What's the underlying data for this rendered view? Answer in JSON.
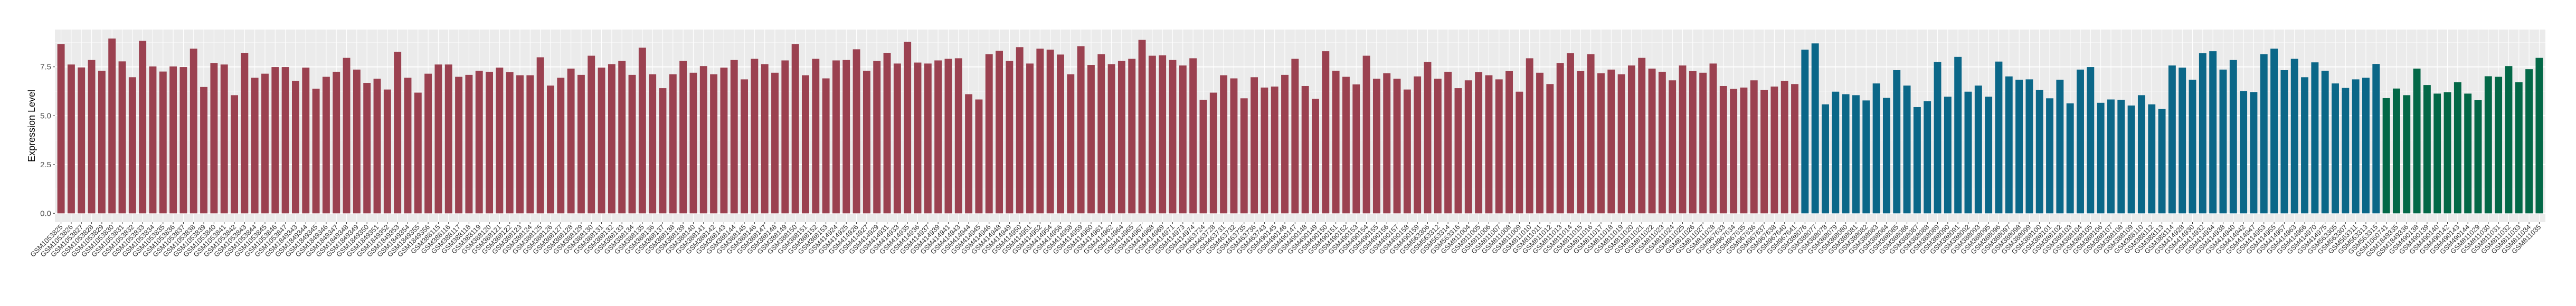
{
  "chart_data": {
    "type": "bar",
    "title": "",
    "xlabel": "",
    "ylabel": "Expression Level",
    "ylim": [
      -0.45,
      9.41
    ],
    "yticks": [
      "0.0",
      "2.5",
      "5.0",
      "7.5"
    ],
    "grid": true,
    "legend": "none",
    "group_colors": [
      "#9B4150",
      "#0B6788",
      "#036847"
    ],
    "categories": [
      "GSM1053825",
      "GSM1053826",
      "GSM1053827",
      "GSM1053828",
      "GSM1053829",
      "GSM1053830",
      "GSM1053831",
      "GSM1053832",
      "GSM1053833",
      "GSM1053834",
      "GSM1053835",
      "GSM1053836",
      "GSM1053837",
      "GSM1053838",
      "GSM1053839",
      "GSM1053840",
      "GSM1053841",
      "GSM1053842",
      "GSM1053843",
      "GSM1053844",
      "GSM1053845",
      "GSM1053846",
      "GSM1053847",
      "GSM1849343",
      "GSM1849344",
      "GSM1849345",
      "GSM1849346",
      "GSM1849347",
      "GSM1849348",
      "GSM1849349",
      "GSM1849350",
      "GSM1849351",
      "GSM1849352",
      "GSM1849353",
      "GSM1849354",
      "GSM1849355",
      "GSM1849356",
      "GSM388115",
      "GSM388116",
      "GSM388117",
      "GSM388118",
      "GSM388119",
      "GSM388120",
      "GSM388121",
      "GSM388122",
      "GSM388123",
      "GSM388124",
      "GSM388125",
      "GSM388126",
      "GSM388127",
      "GSM388128",
      "GSM388129",
      "GSM388130",
      "GSM388131",
      "GSM388132",
      "GSM388133",
      "GSM388134",
      "GSM388135",
      "GSM388136",
      "GSM388137",
      "GSM388138",
      "GSM388139",
      "GSM388140",
      "GSM388141",
      "GSM388142",
      "GSM388143",
      "GSM388144",
      "GSM388145",
      "GSM388146",
      "GSM388147",
      "GSM388148",
      "GSM388149",
      "GSM388150",
      "GSM388151",
      "GSM388152",
      "GSM388153",
      "GSM414924",
      "GSM414925",
      "GSM414926",
      "GSM414927",
      "GSM414929",
      "GSM414931",
      "GSM414933",
      "GSM414935",
      "GSM414936",
      "GSM414937",
      "GSM414939",
      "GSM414941",
      "GSM414943",
      "GSM414944",
      "GSM414945",
      "GSM414946",
      "GSM414948",
      "GSM414949",
      "GSM414950",
      "GSM414951",
      "GSM414952",
      "GSM414954",
      "GSM414956",
      "GSM414958",
      "GSM414959",
      "GSM414960",
      "GSM414961",
      "GSM414962",
      "GSM414964",
      "GSM414965",
      "GSM414967",
      "GSM414968",
      "GSM414969",
      "GSM414971",
      "GSM414973",
      "GSM414974",
      "GSM463724",
      "GSM463728",
      "GSM463731",
      "GSM463732",
      "GSM463735",
      "GSM463736",
      "GSM463743",
      "GSM490145",
      "GSM490146",
      "GSM490147",
      "GSM490148",
      "GSM490149",
      "GSM490150",
      "GSM490151",
      "GSM490152",
      "GSM490153",
      "GSM490154",
      "GSM490155",
      "GSM490156",
      "GSM490157",
      "GSM490158",
      "GSM490159",
      "GSM563306",
      "GSM563312",
      "GSM563314",
      "GSM563316",
      "GSM811004",
      "GSM811005",
      "GSM811006",
      "GSM811007",
      "GSM811008",
      "GSM811009",
      "GSM811010",
      "GSM811011",
      "GSM811012",
      "GSM811013",
      "GSM811014",
      "GSM811015",
      "GSM811016",
      "GSM811017",
      "GSM811018",
      "GSM811019",
      "GSM811020",
      "GSM811021",
      "GSM811022",
      "GSM811023",
      "GSM811024",
      "GSM811025",
      "GSM811026",
      "GSM811027",
      "GSM811028",
      "GSM967633",
      "GSM967634",
      "GSM967635",
      "GSM967636",
      "GSM967637",
      "GSM967638",
      "GSM967640",
      "GSM967641",
      "GSM388076",
      "GSM388077",
      "GSM388078",
      "GSM388079",
      "GSM388080",
      "GSM388081",
      "GSM388082",
      "GSM388083",
      "GSM388084",
      "GSM388085",
      "GSM388086",
      "GSM388087",
      "GSM388088",
      "GSM388089",
      "GSM388090",
      "GSM388091",
      "GSM388092",
      "GSM388093",
      "GSM388095",
      "GSM388096",
      "GSM388097",
      "GSM388098",
      "GSM388099",
      "GSM388100",
      "GSM388101",
      "GSM388102",
      "GSM388103",
      "GSM388104",
      "GSM388105",
      "GSM388106",
      "GSM388107",
      "GSM388108",
      "GSM388109",
      "GSM388110",
      "GSM388112",
      "GSM388113",
      "GSM388114",
      "GSM414928",
      "GSM414930",
      "GSM414932",
      "GSM414934",
      "GSM414938",
      "GSM414940",
      "GSM414942",
      "GSM414947",
      "GSM414953",
      "GSM414955",
      "GSM414957",
      "GSM414963",
      "GSM414966",
      "GSM414970",
      "GSM414975",
      "GSM563305",
      "GSM563307",
      "GSM563311",
      "GSM563313",
      "GSM563315",
      "GSM1060741",
      "GSM1849335",
      "GSM1849336",
      "GSM490138",
      "GSM490139",
      "GSM490140",
      "GSM490142",
      "GSM490143",
      "GSM490144",
      "GSM811029",
      "GSM811030",
      "GSM811031",
      "GSM811032",
      "GSM811033",
      "GSM811034",
      "GSM811035"
    ],
    "values": [
      8.67,
      7.62,
      7.47,
      7.85,
      7.3,
      8.95,
      7.78,
      6.97,
      8.83,
      7.52,
      7.26,
      7.52,
      7.49,
      8.43,
      6.47,
      7.7,
      7.62,
      6.05,
      8.22,
      6.94,
      7.15,
      7.49,
      7.49,
      6.78,
      7.46,
      6.38,
      6.99,
      7.25,
      7.96,
      7.36,
      6.68,
      6.89,
      6.34,
      8.27,
      6.94,
      6.18,
      7.15,
      7.62,
      7.62,
      6.99,
      7.09,
      7.3,
      7.25,
      7.46,
      7.23,
      7.07,
      7.07,
      7.99,
      6.54,
      6.94,
      7.41,
      7.09,
      8.07,
      7.46,
      7.64,
      7.8,
      7.09,
      8.48,
      7.12,
      6.41,
      7.12,
      7.8,
      7.2,
      7.54,
      7.12,
      7.46,
      7.85,
      6.86,
      7.91,
      7.64,
      7.2,
      7.83,
      8.67,
      7.07,
      7.91,
      6.91,
      7.83,
      7.85,
      8.4,
      7.3,
      7.8,
      8.22,
      7.67,
      8.78,
      7.72,
      7.67,
      7.83,
      7.91,
      7.94,
      6.1,
      5.83,
      8.15,
      8.32,
      7.8,
      8.51,
      7.67,
      8.43,
      8.38,
      8.13,
      7.12,
      8.56,
      7.6,
      8.15,
      7.64,
      7.8,
      7.91,
      8.88,
      8.07,
      8.09,
      7.85,
      7.57,
      7.94,
      5.81,
      6.18,
      7.07,
      6.91,
      5.89,
      6.97,
      6.44,
      6.49,
      7.09,
      7.91,
      6.52,
      5.86,
      8.3,
      7.3,
      6.99,
      6.6,
      8.07,
      6.89,
      7.17,
      6.89,
      6.34,
      7.01,
      7.75,
      6.89,
      7.25,
      6.41,
      6.81,
      7.23,
      7.07,
      6.86,
      7.28,
      6.23,
      7.94,
      7.2,
      6.62,
      7.7,
      8.2,
      7.28,
      8.15,
      7.17,
      7.36,
      7.12,
      7.57,
      7.96,
      7.41,
      7.25,
      6.81,
      7.57,
      7.28,
      7.2,
      7.67,
      6.52,
      6.37,
      6.44,
      6.81,
      6.31,
      6.49,
      6.78,
      6.62,
      8.38,
      8.7,
      5.58,
      6.23,
      6.1,
      6.05,
      5.78,
      6.65,
      5.91,
      7.33,
      6.54,
      5.44,
      5.74,
      7.75,
      5.97,
      8.01,
      6.23,
      6.54,
      5.97,
      7.77,
      7.01,
      6.84,
      6.86,
      6.31,
      5.89,
      6.84,
      5.63,
      7.36,
      7.49,
      5.66,
      5.83,
      5.81,
      5.52,
      6.05,
      5.58,
      5.34,
      7.57,
      7.46,
      6.84,
      8.2,
      8.3,
      7.36,
      7.85,
      6.26,
      6.21,
      8.15,
      8.43,
      7.33,
      7.91,
      6.97,
      7.73,
      7.3,
      6.65,
      6.42,
      6.86,
      6.94,
      7.65,
      5.9,
      6.39,
      6.05,
      7.41,
      6.57,
      6.13,
      6.2,
      6.71,
      6.13,
      5.79,
      7.02,
      6.99,
      7.54,
      6.71,
      7.38,
      7.96
    ],
    "group_sizes": [
      171,
      57,
      16
    ]
  }
}
